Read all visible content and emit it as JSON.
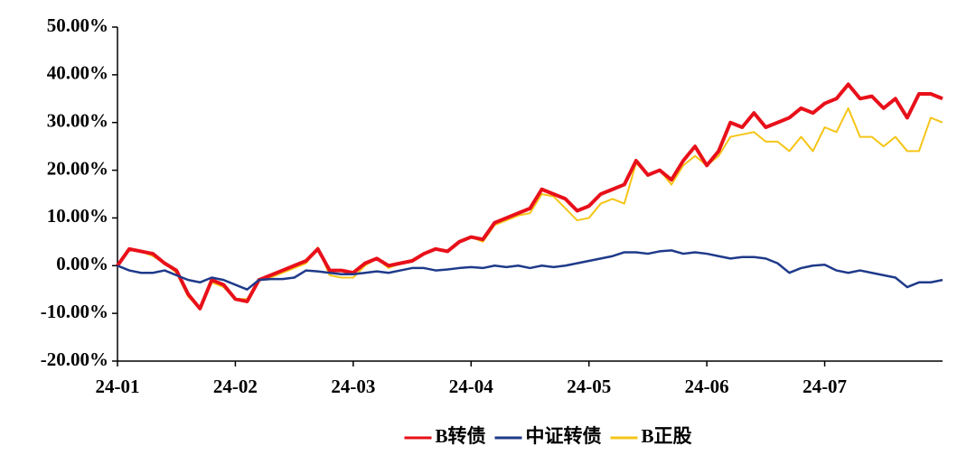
{
  "chart_data": {
    "type": "line",
    "x": [
      0,
      0.1,
      0.2,
      0.3,
      0.4,
      0.5,
      0.6,
      0.7,
      0.8,
      0.9,
      1,
      1.1,
      1.2,
      1.3,
      1.4,
      1.5,
      1.6,
      1.7,
      1.8,
      1.9,
      2,
      2.1,
      2.2,
      2.3,
      2.4,
      2.5,
      2.6,
      2.7,
      2.8,
      2.9,
      3,
      3.1,
      3.2,
      3.3,
      3.4,
      3.5,
      3.6,
      3.7,
      3.8,
      3.9,
      4,
      4.1,
      4.2,
      4.3,
      4.4,
      4.5,
      4.6,
      4.7,
      4.8,
      4.9,
      5,
      5.1,
      5.2,
      5.3,
      5.4,
      5.5,
      5.6,
      5.7,
      5.8,
      5.9,
      6,
      6.1,
      6.2,
      6.3,
      6.4,
      6.5,
      6.6,
      6.7,
      6.8,
      6.9,
      7
    ],
    "series": [
      {
        "name": "B转债",
        "color": "#e8101a",
        "width": 4,
        "values": [
          0,
          3.5,
          3,
          2.5,
          0.5,
          -1,
          -6,
          -9,
          -3,
          -4,
          -7,
          -7.5,
          -3,
          -2,
          -1,
          0,
          1,
          3.5,
          -1,
          -1,
          -1.5,
          0.5,
          1.5,
          0,
          0.5,
          1,
          2.5,
          3.5,
          3,
          5,
          6,
          5.5,
          9,
          10,
          11,
          12,
          16,
          15,
          14,
          11.5,
          12.5,
          15,
          16,
          17,
          22,
          19,
          20,
          18,
          22,
          25,
          21,
          24,
          30,
          29,
          32,
          29,
          30,
          31,
          33,
          32,
          34,
          35,
          38,
          35,
          35.5,
          33,
          35,
          31,
          36,
          36,
          35
        ]
      },
      {
        "name": "中证转债",
        "color": "#1f3a8a",
        "width": 2.5,
        "values": [
          0,
          -1,
          -1.5,
          -1.5,
          -1,
          -2,
          -3,
          -3.5,
          -2.5,
          -3,
          -4,
          -5,
          -3,
          -2.8,
          -2.8,
          -2.5,
          -1,
          -1.2,
          -1.5,
          -1.8,
          -1.8,
          -1.5,
          -1.2,
          -1.5,
          -1,
          -0.5,
          -0.5,
          -1,
          -0.8,
          -0.5,
          -0.3,
          -0.5,
          0,
          -0.3,
          0,
          -0.5,
          0,
          -0.3,
          0,
          0.5,
          1,
          1.5,
          2,
          2.8,
          2.8,
          2.5,
          3,
          3.2,
          2.5,
          2.8,
          2.5,
          2,
          1.5,
          1.8,
          1.8,
          1.5,
          0.5,
          -1.5,
          -0.5,
          0,
          0.2,
          -1,
          -1.5,
          -1,
          -1.5,
          -2,
          -2.5,
          -4.5,
          -3.5,
          -3.5,
          -3
        ]
      },
      {
        "name": "B正股",
        "color": "#f5c518",
        "width": 2,
        "values": [
          0,
          3.2,
          3,
          2,
          0.5,
          -1.5,
          -6.5,
          -9,
          -3.5,
          -4.5,
          -7,
          -7,
          -3,
          -2.5,
          -1.5,
          -0.5,
          0.5,
          3.8,
          -2,
          -2.5,
          -2.5,
          0,
          1.5,
          -0.5,
          0.5,
          1.2,
          2.5,
          3.5,
          3,
          5,
          6,
          5,
          8.5,
          9.5,
          10.5,
          11,
          15,
          14.5,
          12,
          9.5,
          10,
          13,
          14,
          13,
          21.5,
          19,
          20,
          17,
          21,
          23,
          21,
          23,
          27,
          27.5,
          28,
          26,
          26,
          24,
          27,
          24,
          29,
          28,
          33,
          27,
          27,
          25,
          27,
          24,
          24,
          31,
          30
        ]
      }
    ],
    "xlim": [
      0,
      7
    ],
    "xticks": [
      {
        "value": 0,
        "label": "24-01"
      },
      {
        "value": 1,
        "label": "24-02"
      },
      {
        "value": 2,
        "label": "24-03"
      },
      {
        "value": 3,
        "label": "24-04"
      },
      {
        "value": 4,
        "label": "24-05"
      },
      {
        "value": 5,
        "label": "24-06"
      },
      {
        "value": 6,
        "label": "24-07"
      }
    ],
    "ylim": [
      -20,
      50
    ],
    "yticks": [
      {
        "value": -20,
        "label": "-20.00%"
      },
      {
        "value": -10,
        "label": "-10.00%"
      },
      {
        "value": 0,
        "label": "0.00%"
      },
      {
        "value": 10,
        "label": "10.00%"
      },
      {
        "value": 20,
        "label": "20.00%"
      },
      {
        "value": 30,
        "label": "30.00%"
      },
      {
        "value": 40,
        "label": "40.00%"
      },
      {
        "value": 50,
        "label": "50.00%"
      }
    ],
    "legend": "bottom"
  }
}
